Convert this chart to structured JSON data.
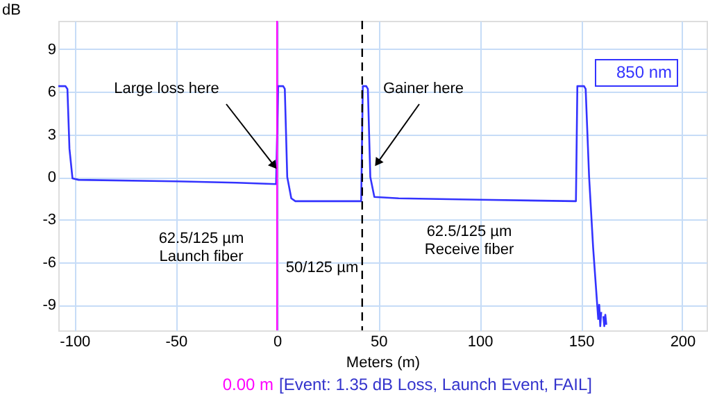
{
  "chart_data": {
    "type": "line",
    "xlabel": "Meters (m)",
    "ylabel": "dB",
    "xlim": [
      -108,
      212
    ],
    "ylim": [
      -10.8,
      11
    ],
    "xticks": [
      -100,
      -50,
      0,
      50,
      100,
      150,
      200
    ],
    "yticks": [
      -9,
      -6,
      -3,
      0,
      3,
      6,
      9
    ],
    "grid": true,
    "marker": "none",
    "line_style": "solid",
    "series": [
      {
        "name": "850 nm",
        "color": "#3333ff",
        "x": [
          -108,
          -104.5,
          -103.5,
          -102.5,
          -101,
          -98,
          -50,
          -20,
          -0.5,
          0.5,
          3,
          3.8,
          5,
          7,
          9,
          41.5,
          42.3,
          44,
          44.8,
          46,
          48,
          60,
          100,
          147.5,
          148.2,
          151.5,
          152.3,
          154,
          156,
          158,
          158.5,
          159,
          159.5,
          160,
          160.5,
          161,
          161.5,
          162,
          162.5
        ],
        "values": [
          6.4,
          6.4,
          6.2,
          2,
          -0.1,
          -0.2,
          -0.3,
          -0.4,
          -0.5,
          6.4,
          6.4,
          6.2,
          0,
          -1.5,
          -1.7,
          -1.7,
          6.4,
          6.4,
          6.2,
          0,
          -1.4,
          -1.5,
          -1.6,
          -1.7,
          6.4,
          6.4,
          6.2,
          0,
          -5,
          -9,
          -10,
          -9,
          -10.5,
          -9.5,
          null,
          -9.8,
          -10.5,
          -9.7,
          -10.4
        ]
      }
    ],
    "ref_lines": [
      {
        "axis": "x",
        "value": 0,
        "label": "0.00 m",
        "color": "#ff00ff",
        "line_style": "solid"
      },
      {
        "axis": "x",
        "value": 42,
        "color": "#000000",
        "line_style": "dashed"
      }
    ],
    "annotations": [
      {
        "text": "Large loss here",
        "x": -1.5,
        "y": 0.8
      },
      {
        "text": "Gainer here",
        "x": 49.5,
        "y": 1
      },
      "62.5/125  µm\nLaunch fiber",
      "50/125  µm",
      "62.5/125  µm\nReceive fiber",
      "[Event: 1.35 dB Loss, Launch Event, FAIL]"
    ]
  }
}
